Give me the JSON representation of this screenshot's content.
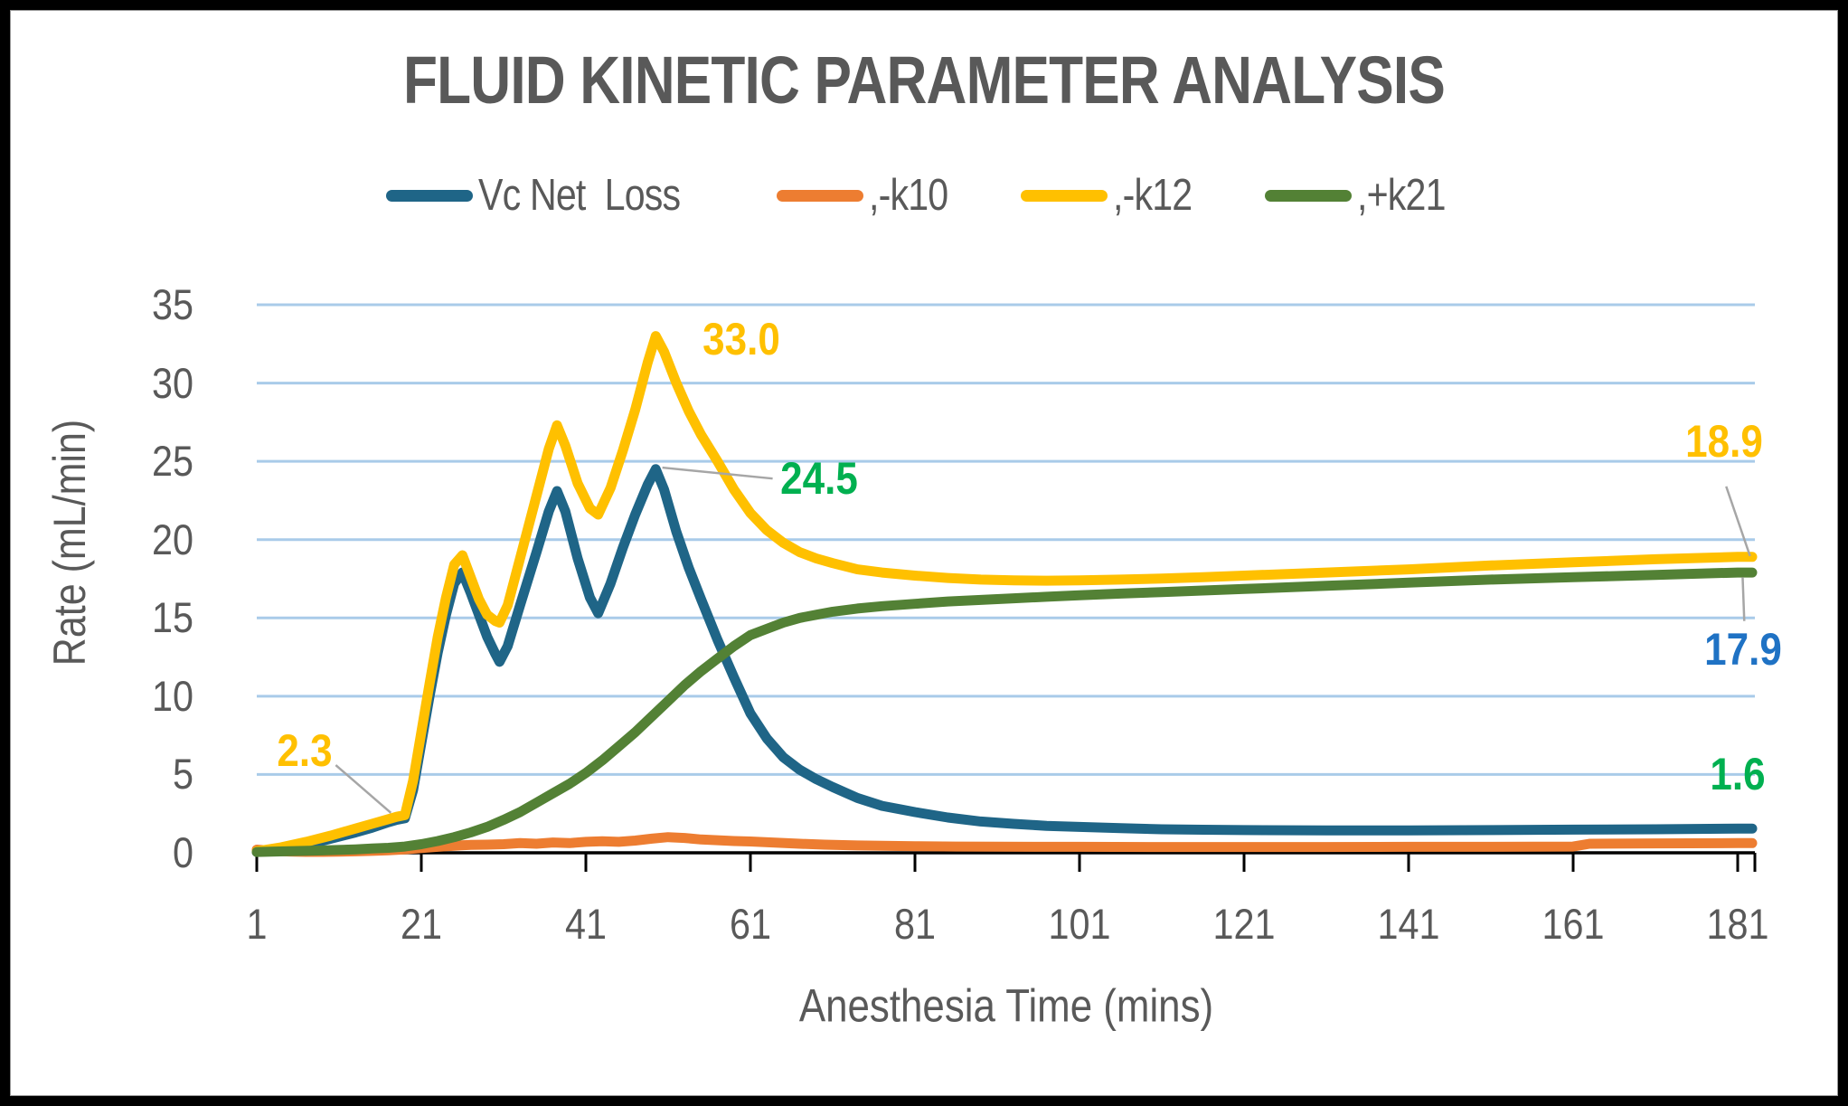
{
  "chart_data": {
    "type": "line",
    "title": "FLUID KINETIC PARAMETER ANALYSIS",
    "xlabel": "Anesthesia Time (mins)",
    "ylabel": "Rate (mL/min)",
    "x_ticks": [
      1,
      21,
      41,
      61,
      81,
      101,
      121,
      141,
      161,
      181
    ],
    "y_ticks": [
      0,
      5,
      10,
      15,
      20,
      25,
      30,
      35
    ],
    "ylim": [
      0,
      35
    ],
    "xlim": [
      1,
      183
    ],
    "grid": "horizontal",
    "legend_position": "top",
    "colors": {
      "gridline": "#A9CBE9",
      "axis_line": "#000000",
      "axis_text": "#595959",
      "leader_line": "#A6A6A6",
      "title_text": "#595959",
      "frame_border": "#000000"
    },
    "series": [
      {
        "name": "Vc Net  Loss",
        "color": "#1F6587",
        "points": [
          [
            1,
            0.05
          ],
          [
            4,
            0.2
          ],
          [
            7,
            0.5
          ],
          [
            10,
            0.9
          ],
          [
            13,
            1.3
          ],
          [
            15,
            1.6
          ],
          [
            17,
            1.95
          ],
          [
            18,
            2.1
          ],
          [
            19,
            2.2
          ],
          [
            20,
            4
          ],
          [
            21,
            7
          ],
          [
            22,
            10
          ],
          [
            23,
            12.8
          ],
          [
            24,
            15.2
          ],
          [
            25,
            17.2
          ],
          [
            26,
            17.9
          ],
          [
            27,
            16.6
          ],
          [
            28,
            15.2
          ],
          [
            29,
            13.8
          ],
          [
            30,
            12.7
          ],
          [
            30.5,
            12.2
          ],
          [
            31.5,
            13.2
          ],
          [
            33,
            15.8
          ],
          [
            35,
            19.2
          ],
          [
            36.5,
            21.8
          ],
          [
            37.5,
            23.1
          ],
          [
            38.5,
            21.8
          ],
          [
            40,
            18.8
          ],
          [
            41.5,
            16.3
          ],
          [
            42.5,
            15.3
          ],
          [
            44,
            17.2
          ],
          [
            45.5,
            19.5
          ],
          [
            47,
            21.6
          ],
          [
            48.5,
            23.5
          ],
          [
            49.5,
            24.5
          ],
          [
            50.5,
            23.2
          ],
          [
            52,
            20.5
          ],
          [
            53.5,
            18.2
          ],
          [
            55,
            16.2
          ],
          [
            57,
            13.6
          ],
          [
            59,
            11.2
          ],
          [
            61,
            8.9
          ],
          [
            63,
            7.3
          ],
          [
            65,
            6.1
          ],
          [
            67,
            5.3
          ],
          [
            69,
            4.7
          ],
          [
            71,
            4.2
          ],
          [
            74,
            3.5
          ],
          [
            77,
            3
          ],
          [
            81,
            2.6
          ],
          [
            85,
            2.25
          ],
          [
            89,
            2
          ],
          [
            93,
            1.85
          ],
          [
            97,
            1.72
          ],
          [
            101,
            1.65
          ],
          [
            106,
            1.57
          ],
          [
            111,
            1.5
          ],
          [
            116,
            1.47
          ],
          [
            121,
            1.45
          ],
          [
            131,
            1.43
          ],
          [
            141,
            1.43
          ],
          [
            151,
            1.45
          ],
          [
            161,
            1.48
          ],
          [
            171,
            1.5
          ],
          [
            181,
            1.55
          ]
        ]
      },
      {
        "name": ",-k10",
        "color": "#ED7D31",
        "points": [
          [
            1,
            0.2
          ],
          [
            3,
            0.12
          ],
          [
            5,
            0.08
          ],
          [
            7,
            0.06
          ],
          [
            9,
            0.06
          ],
          [
            11,
            0.07
          ],
          [
            13,
            0.09
          ],
          [
            15,
            0.12
          ],
          [
            17,
            0.16
          ],
          [
            19,
            0.22
          ],
          [
            21,
            0.3
          ],
          [
            23,
            0.38
          ],
          [
            25,
            0.45
          ],
          [
            27,
            0.5
          ],
          [
            29,
            0.52
          ],
          [
            31,
            0.55
          ],
          [
            33,
            0.62
          ],
          [
            35,
            0.58
          ],
          [
            37,
            0.66
          ],
          [
            39,
            0.62
          ],
          [
            41,
            0.7
          ],
          [
            43,
            0.74
          ],
          [
            45,
            0.7
          ],
          [
            47,
            0.78
          ],
          [
            49,
            0.9
          ],
          [
            51,
            1
          ],
          [
            53,
            0.95
          ],
          [
            55,
            0.85
          ],
          [
            57,
            0.8
          ],
          [
            59,
            0.75
          ],
          [
            61,
            0.72
          ],
          [
            64,
            0.65
          ],
          [
            67,
            0.58
          ],
          [
            70,
            0.52
          ],
          [
            74,
            0.47
          ],
          [
            78,
            0.44
          ],
          [
            81,
            0.42
          ],
          [
            86,
            0.4
          ],
          [
            91,
            0.39
          ],
          [
            96,
            0.38
          ],
          [
            101,
            0.38
          ],
          [
            111,
            0.37
          ],
          [
            121,
            0.37
          ],
          [
            131,
            0.37
          ],
          [
            141,
            0.38
          ],
          [
            151,
            0.38
          ],
          [
            161,
            0.4
          ],
          [
            163,
            0.58
          ],
          [
            171,
            0.6
          ],
          [
            181,
            0.62
          ]
        ]
      },
      {
        "name": ",-k12",
        "color": "#FFC000",
        "points": [
          [
            1,
            0.1
          ],
          [
            4,
            0.35
          ],
          [
            7,
            0.7
          ],
          [
            10,
            1.1
          ],
          [
            13,
            1.55
          ],
          [
            15,
            1.85
          ],
          [
            17,
            2.15
          ],
          [
            18,
            2.3
          ],
          [
            19,
            2.4
          ],
          [
            20,
            4.6
          ],
          [
            21,
            7.7
          ],
          [
            22,
            10.8
          ],
          [
            23,
            13.8
          ],
          [
            24,
            16.3
          ],
          [
            25,
            18.4
          ],
          [
            26,
            19
          ],
          [
            27,
            17.6
          ],
          [
            28,
            16.2
          ],
          [
            29,
            15.2
          ],
          [
            30,
            14.8
          ],
          [
            30.5,
            14.7
          ],
          [
            31.5,
            15.8
          ],
          [
            33,
            18.8
          ],
          [
            35,
            22.8
          ],
          [
            36.5,
            25.8
          ],
          [
            37.5,
            27.3
          ],
          [
            38.5,
            26
          ],
          [
            40,
            23.6
          ],
          [
            41.5,
            22
          ],
          [
            42.5,
            21.6
          ],
          [
            44,
            23.3
          ],
          [
            45.5,
            25.7
          ],
          [
            47,
            28.3
          ],
          [
            48.5,
            31.3
          ],
          [
            49.5,
            33
          ],
          [
            50.5,
            32
          ],
          [
            52,
            30
          ],
          [
            53.5,
            28.2
          ],
          [
            55,
            26.7
          ],
          [
            57,
            25
          ],
          [
            59,
            23.2
          ],
          [
            61,
            21.7
          ],
          [
            63,
            20.6
          ],
          [
            65,
            19.8
          ],
          [
            67,
            19.2
          ],
          [
            69,
            18.8
          ],
          [
            71,
            18.5
          ],
          [
            74,
            18.1
          ],
          [
            77,
            17.9
          ],
          [
            81,
            17.7
          ],
          [
            85,
            17.55
          ],
          [
            89,
            17.45
          ],
          [
            93,
            17.4
          ],
          [
            97,
            17.38
          ],
          [
            101,
            17.4
          ],
          [
            106,
            17.45
          ],
          [
            111,
            17.52
          ],
          [
            116,
            17.6
          ],
          [
            121,
            17.7
          ],
          [
            131,
            17.9
          ],
          [
            141,
            18.1
          ],
          [
            151,
            18.35
          ],
          [
            161,
            18.55
          ],
          [
            171,
            18.75
          ],
          [
            181,
            18.9
          ]
        ]
      },
      {
        "name": ",+k21",
        "color": "#538135",
        "points": [
          [
            1,
            0.05
          ],
          [
            5,
            0.1
          ],
          [
            9,
            0.15
          ],
          [
            13,
            0.22
          ],
          [
            15,
            0.27
          ],
          [
            17,
            0.32
          ],
          [
            19,
            0.4
          ],
          [
            21,
            0.55
          ],
          [
            23,
            0.75
          ],
          [
            25,
            1
          ],
          [
            27,
            1.3
          ],
          [
            29,
            1.65
          ],
          [
            31,
            2.1
          ],
          [
            33,
            2.6
          ],
          [
            35,
            3.2
          ],
          [
            37,
            3.8
          ],
          [
            39,
            4.4
          ],
          [
            41,
            5.1
          ],
          [
            43,
            5.9
          ],
          [
            45,
            6.8
          ],
          [
            47,
            7.7
          ],
          [
            49,
            8.7
          ],
          [
            51,
            9.7
          ],
          [
            53,
            10.7
          ],
          [
            55,
            11.6
          ],
          [
            57,
            12.4
          ],
          [
            59,
            13.2
          ],
          [
            61,
            13.9
          ],
          [
            63,
            14.3
          ],
          [
            65,
            14.7
          ],
          [
            67,
            15
          ],
          [
            69,
            15.2
          ],
          [
            71,
            15.4
          ],
          [
            74,
            15.6
          ],
          [
            77,
            15.75
          ],
          [
            81,
            15.9
          ],
          [
            85,
            16.05
          ],
          [
            89,
            16.15
          ],
          [
            93,
            16.25
          ],
          [
            97,
            16.35
          ],
          [
            101,
            16.45
          ],
          [
            106,
            16.55
          ],
          [
            111,
            16.65
          ],
          [
            116,
            16.75
          ],
          [
            121,
            16.85
          ],
          [
            131,
            17.05
          ],
          [
            141,
            17.25
          ],
          [
            151,
            17.45
          ],
          [
            161,
            17.6
          ],
          [
            171,
            17.75
          ],
          [
            181,
            17.9
          ]
        ]
      }
    ],
    "annotations": [
      {
        "text": "2.3",
        "color": "#FFC000",
        "at": [
          6.8,
          6.5
        ],
        "leader": [
          [
            10.6,
            5.6
          ],
          [
            17.3,
            2.55
          ]
        ]
      },
      {
        "text": "33.0",
        "color": "#FFC000",
        "at": [
          59.9,
          32.8
        ],
        "leader": null
      },
      {
        "text": "24.5",
        "color": "#00B050",
        "at": [
          69.4,
          23.9
        ],
        "leader": [
          [
            50.3,
            24.6
          ],
          [
            63.7,
            23.9
          ]
        ]
      },
      {
        "text": "18.9",
        "color": "#FFC000",
        "at": [
          179.4,
          26.3
        ],
        "leader": [
          [
            179.6,
            23.4
          ],
          [
            182.5,
            18.95
          ]
        ]
      },
      {
        "text": "17.9",
        "color": "#1F72C4",
        "at": [
          181.7,
          13.0
        ],
        "leader": [
          [
            181.6,
            17.6
          ],
          [
            181.8,
            14.8
          ]
        ]
      },
      {
        "text": "1.6",
        "color": "#00B050",
        "at": [
          181.0,
          5.0
        ],
        "leader": null
      }
    ]
  }
}
